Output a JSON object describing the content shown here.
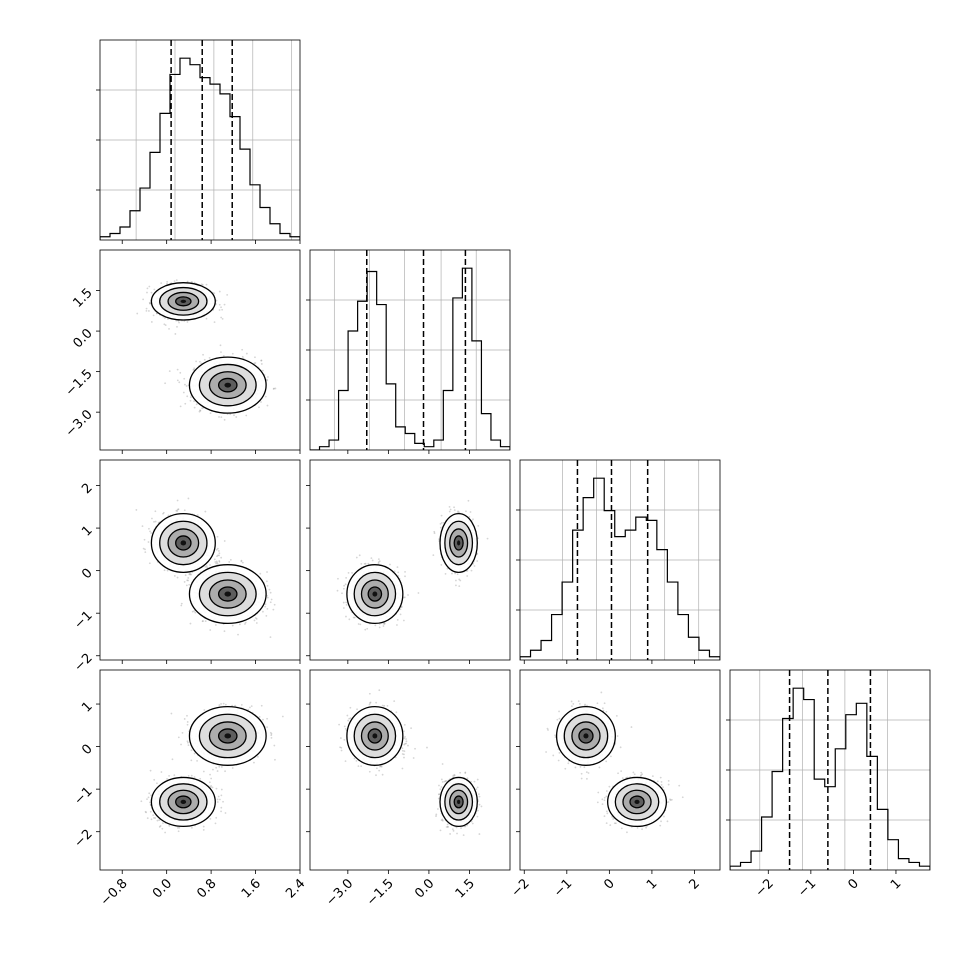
{
  "chart_data": {
    "type": "corner",
    "title": "",
    "grid": true,
    "variables": [
      {
        "range": [
          -1.2,
          2.4
        ],
        "ticks": [
          -0.8,
          0.0,
          0.8,
          1.6,
          2.4
        ],
        "tick_labels": [
          "−0.8",
          "0.0",
          "0.8",
          "1.6",
          "2.4"
        ],
        "quantiles": [
          0.08,
          0.64,
          1.18
        ],
        "gridlines": [
          -0.55,
          0.15,
          0.85,
          1.55,
          2.25
        ]
      },
      {
        "range": [
          -4.4,
          3.0
        ],
        "ticks": [
          -3.0,
          -1.5,
          0.0,
          1.5
        ],
        "tick_labels": [
          "−3.0",
          "−1.5",
          "0.0",
          "1.5"
        ],
        "quantiles": [
          -2.3,
          -0.2,
          1.35
        ],
        "gridlines": [
          -3.5,
          -2.2,
          -0.9,
          0.45,
          1.75
        ]
      },
      {
        "range": [
          -2.1,
          2.6
        ],
        "ticks": [
          -2,
          -1,
          0,
          1,
          2
        ],
        "tick_labels": [
          "−2",
          "−1",
          "0",
          "1",
          "2"
        ],
        "quantiles": [
          -0.75,
          0.05,
          0.9
        ],
        "gridlines": [
          -1.1,
          -0.3,
          0.5,
          1.3,
          2.1
        ]
      },
      {
        "range": [
          -2.9,
          1.8
        ],
        "ticks": [
          -2,
          -1,
          0,
          1
        ],
        "tick_labels": [
          "−2",
          "−1",
          "0",
          "1"
        ],
        "quantiles": [
          -1.5,
          -0.6,
          0.4
        ],
        "gridlines": [
          -2.2,
          -1.2,
          -0.2,
          0.8
        ]
      }
    ],
    "histograms": [
      {
        "counts": [
          1,
          2,
          4,
          9,
          16,
          27,
          39,
          51,
          56,
          54,
          50,
          48,
          45,
          38,
          28,
          17,
          10,
          5,
          2,
          1
        ]
      },
      {
        "counts": [
          0,
          1,
          3,
          18,
          36,
          45,
          54,
          44,
          20,
          7,
          5,
          2,
          1,
          3,
          18,
          46,
          55,
          33,
          11,
          3,
          1
        ]
      },
      {
        "counts": [
          1,
          3,
          6,
          14,
          24,
          40,
          50,
          56,
          46,
          38,
          40,
          44,
          43,
          34,
          24,
          14,
          7,
          3,
          1
        ]
      },
      {
        "counts": [
          1,
          2,
          5,
          14,
          26,
          40,
          48,
          45,
          24,
          22,
          32,
          41,
          44,
          30,
          16,
          8,
          3,
          2,
          1
        ]
      }
    ],
    "clusters": [
      {
        "mean": [
          0.3,
          1.1,
          0.65,
          -1.3
        ],
        "sd": [
          0.25,
          0.3,
          0.3,
          0.25
        ],
        "weight": 0.5
      },
      {
        "mean": [
          1.1,
          -2.0,
          -0.55,
          0.25
        ],
        "sd": [
          0.3,
          0.45,
          0.3,
          0.3
        ],
        "weight": 0.5
      }
    ],
    "correlations": {
      "0_2": -0.15,
      "0_3": 0.1,
      "1_2": 0.0,
      "1_3": 0.0,
      "2_3": 0.1
    }
  }
}
